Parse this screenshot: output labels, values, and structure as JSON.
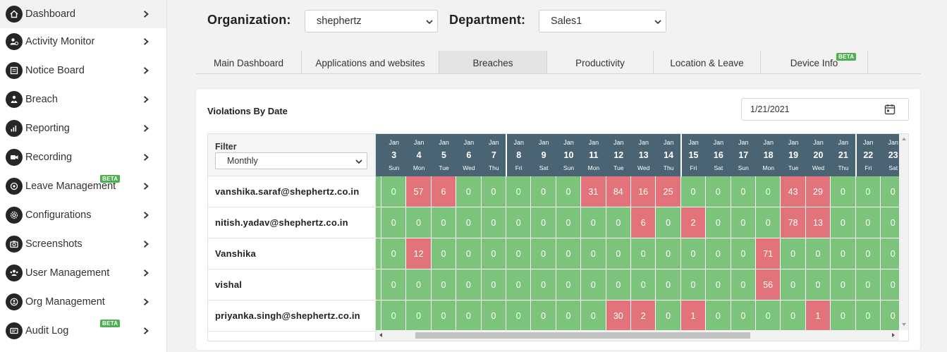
{
  "sidebar": {
    "items": [
      {
        "label": "Dashboard",
        "icon": "home-icon",
        "active": true
      },
      {
        "label": "Activity Monitor",
        "icon": "user-activity-icon"
      },
      {
        "label": "Notice Board",
        "icon": "notice-board-icon"
      },
      {
        "label": "Breach",
        "icon": "breach-icon"
      },
      {
        "label": "Reporting",
        "icon": "reporting-icon"
      },
      {
        "label": "Recording",
        "icon": "recording-icon"
      },
      {
        "label": "Leave Management",
        "icon": "leave-icon",
        "badge": "BETA"
      },
      {
        "label": "Configurations",
        "icon": "configurations-icon"
      },
      {
        "label": "Screenshots",
        "icon": "screenshots-icon"
      },
      {
        "label": "User Management",
        "icon": "user-management-icon"
      },
      {
        "label": "Org Management",
        "icon": "org-management-icon"
      },
      {
        "label": "Audit Log",
        "icon": "audit-log-icon",
        "badge": "BETA"
      }
    ]
  },
  "header": {
    "organization_label": "Organization:",
    "organization_value": "shephertz",
    "department_label": "Department:",
    "department_value": "Sales1"
  },
  "tabs": [
    {
      "label": "Main Dashboard"
    },
    {
      "label": "Applications and websites"
    },
    {
      "label": "Breaches",
      "active": true
    },
    {
      "label": "Productivity"
    },
    {
      "label": "Location & Leave"
    },
    {
      "label": "Device Info",
      "badge": "BETA"
    }
  ],
  "card": {
    "title": "Violations By Date",
    "date_value": "1/21/2021",
    "filter_label": "Filter",
    "filter_value": "Monthly"
  },
  "colors": {
    "zero_cell": "#7cc47c",
    "breach_cell": "#e3737a",
    "header_bg": "#4a6474"
  },
  "dates": [
    {
      "m": "Jan",
      "d": "3",
      "w": "Sun"
    },
    {
      "m": "Jan",
      "d": "4",
      "w": "Mon"
    },
    {
      "m": "Jan",
      "d": "5",
      "w": "Tue"
    },
    {
      "m": "Jan",
      "d": "6",
      "w": "Wed"
    },
    {
      "m": "Jan",
      "d": "7",
      "w": "Thu"
    },
    {
      "m": "Jan",
      "d": "8",
      "w": "Fri"
    },
    {
      "m": "Jan",
      "d": "9",
      "w": "Sat"
    },
    {
      "m": "Jan",
      "d": "10",
      "w": "Sun"
    },
    {
      "m": "Jan",
      "d": "11",
      "w": "Mon"
    },
    {
      "m": "Jan",
      "d": "12",
      "w": "Tue"
    },
    {
      "m": "Jan",
      "d": "13",
      "w": "Wed"
    },
    {
      "m": "Jan",
      "d": "14",
      "w": "Thu"
    },
    {
      "m": "Jan",
      "d": "15",
      "w": "Fri"
    },
    {
      "m": "Jan",
      "d": "16",
      "w": "Sat"
    },
    {
      "m": "Jan",
      "d": "17",
      "w": "Sun"
    },
    {
      "m": "Jan",
      "d": "18",
      "w": "Mon"
    },
    {
      "m": "Jan",
      "d": "19",
      "w": "Tue"
    },
    {
      "m": "Jan",
      "d": "20",
      "w": "Wed"
    },
    {
      "m": "Jan",
      "d": "21",
      "w": "Thu"
    },
    {
      "m": "Jan",
      "d": "22",
      "w": "Fri"
    },
    {
      "m": "Jan",
      "d": "23",
      "w": "Sat"
    }
  ],
  "rows": [
    {
      "name": "vanshika.saraf@shephertz.co.in",
      "values": [
        0,
        57,
        6,
        0,
        0,
        0,
        0,
        0,
        31,
        84,
        16,
        25,
        0,
        0,
        0,
        0,
        43,
        29,
        0,
        0,
        0
      ]
    },
    {
      "name": "nitish.yadav@shephertz.co.in",
      "values": [
        0,
        0,
        0,
        0,
        0,
        0,
        0,
        0,
        0,
        0,
        6,
        0,
        2,
        0,
        0,
        0,
        78,
        13,
        0,
        0,
        0
      ]
    },
    {
      "name": "Vanshika",
      "values": [
        0,
        12,
        0,
        0,
        0,
        0,
        0,
        0,
        0,
        0,
        0,
        0,
        0,
        0,
        0,
        71,
        0,
        0,
        0,
        0,
        0
      ]
    },
    {
      "name": "vishal",
      "values": [
        0,
        0,
        0,
        0,
        0,
        0,
        0,
        0,
        0,
        0,
        0,
        0,
        0,
        0,
        0,
        56,
        0,
        0,
        0,
        0,
        0
      ]
    },
    {
      "name": "priyanka.singh@shephertz.co.in",
      "values": [
        0,
        0,
        0,
        0,
        0,
        0,
        0,
        0,
        0,
        30,
        2,
        0,
        1,
        0,
        0,
        0,
        0,
        1,
        0,
        0,
        0
      ]
    }
  ]
}
